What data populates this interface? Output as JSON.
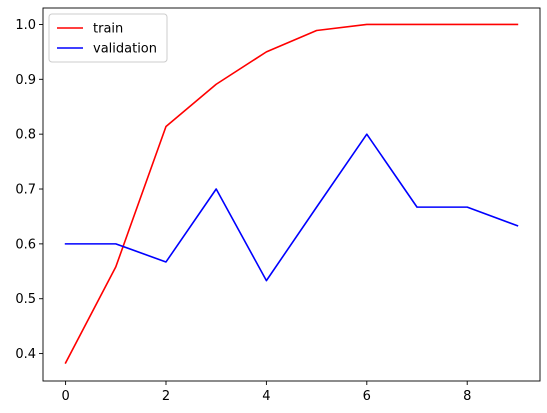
{
  "chart_data": {
    "type": "line",
    "title": "",
    "xlabel": "",
    "ylabel": "",
    "x": [
      0,
      1,
      2,
      3,
      4,
      5,
      6,
      7,
      8,
      9
    ],
    "xlim": [
      -0.45,
      9.45
    ],
    "ylim": [
      0.35,
      1.03
    ],
    "xticks": [
      0,
      2,
      4,
      6,
      8
    ],
    "yticks": [
      0.4,
      0.5,
      0.6,
      0.7,
      0.8,
      0.9,
      1.0
    ],
    "xtick_labels": [
      "0",
      "2",
      "4",
      "6",
      "8"
    ],
    "ytick_labels": [
      "0.4",
      "0.5",
      "0.6",
      "0.7",
      "0.8",
      "0.9",
      "1.0"
    ],
    "grid": false,
    "legend_position": "top-left",
    "series": [
      {
        "name": "train",
        "color": "#ff0000",
        "values": [
          0.383,
          0.558,
          0.814,
          0.891,
          0.95,
          0.989,
          1.0,
          1.0,
          1.0,
          1.0
        ]
      },
      {
        "name": "validation",
        "color": "#0000ff",
        "values": [
          0.6,
          0.6,
          0.567,
          0.7,
          0.533,
          0.667,
          0.8,
          0.667,
          0.667,
          0.633
        ]
      }
    ]
  }
}
